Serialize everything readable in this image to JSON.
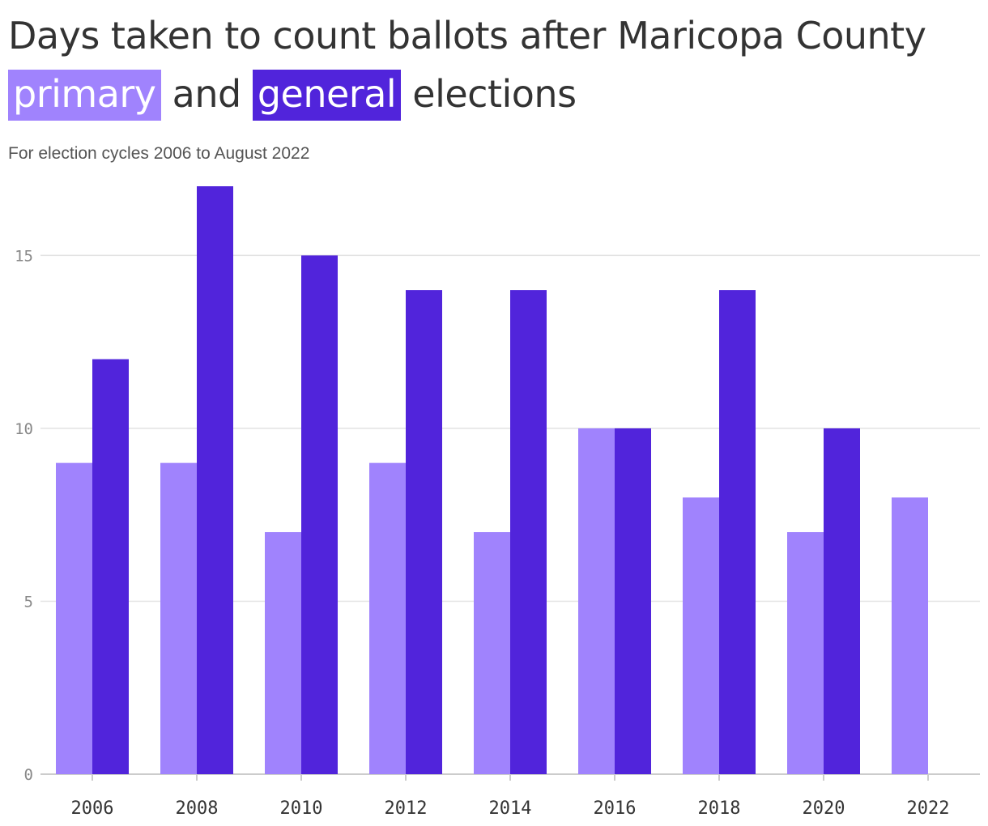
{
  "header": {
    "title_line1": "Days taken to count ballots after Maricopa County",
    "title_primary": "primary",
    "title_and": "and",
    "title_general": "general",
    "title_elections": "elections",
    "subtitle": "For election cycles 2006 to August 2022"
  },
  "colors": {
    "primary": "#a083fd",
    "general": "#5124db",
    "grid": "#e3e3e3",
    "axis": "#cccccc"
  },
  "chart_data": {
    "type": "bar",
    "title": "Days taken to count ballots after Maricopa County primary and general elections",
    "subtitle": "For election cycles 2006 to August 2022",
    "xlabel": "",
    "ylabel": "",
    "categories": [
      "2006",
      "2008",
      "2010",
      "2012",
      "2014",
      "2016",
      "2018",
      "2020",
      "2022"
    ],
    "series": [
      {
        "name": "primary",
        "values": [
          9,
          9,
          7,
          9,
          7,
          10,
          8,
          7,
          8
        ]
      },
      {
        "name": "general",
        "values": [
          12,
          17,
          15,
          14,
          14,
          10,
          14,
          10,
          null
        ]
      }
    ],
    "ylim": [
      0,
      17
    ],
    "yticks": [
      0,
      5,
      10,
      15
    ],
    "grid": true,
    "legend": "title"
  }
}
